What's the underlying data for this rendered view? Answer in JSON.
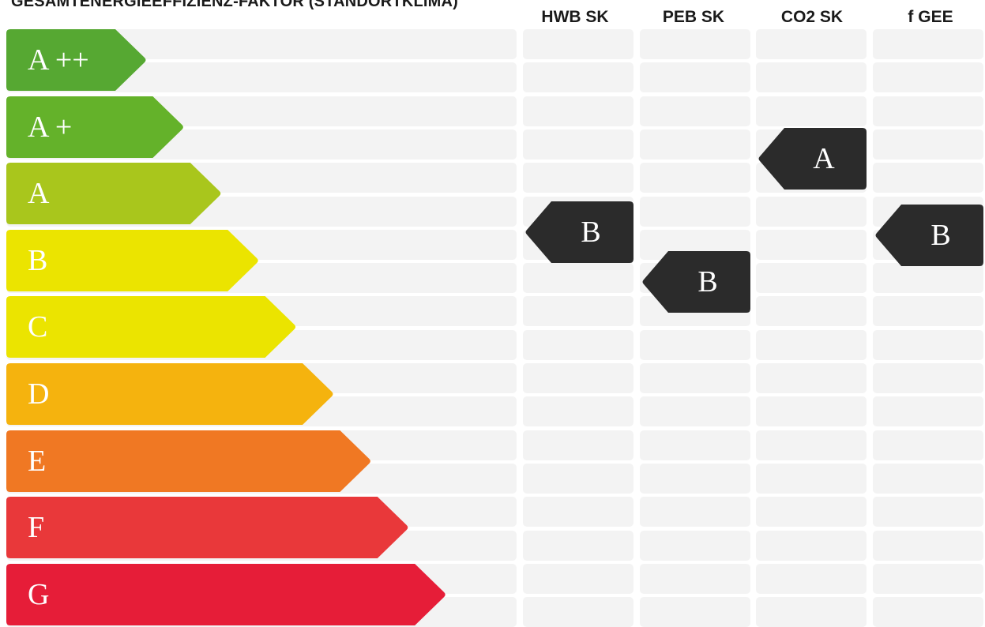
{
  "title": "GESAMTENERGIEEFFIZIENZ-FAKTOR (STANDORTKLIMA)",
  "columns": [
    "HWB SK",
    "PEB SK",
    "CO2 SK",
    "f GEE"
  ],
  "classes": [
    {
      "label": "A ++",
      "color": "#56a832"
    },
    {
      "label": "A +",
      "color": "#64b22a"
    },
    {
      "label": "A",
      "color": "#a9c61c"
    },
    {
      "label": "B",
      "color": "#ebe400"
    },
    {
      "label": "C",
      "color": "#ebe400"
    },
    {
      "label": "D",
      "color": "#f5b30e"
    },
    {
      "label": "E",
      "color": "#f07823"
    },
    {
      "label": "F",
      "color": "#e9383a"
    },
    {
      "label": "G",
      "color": "#e61d38"
    }
  ],
  "ratings": [
    {
      "column": "HWB SK",
      "value": "B",
      "class_position": 3.05
    },
    {
      "column": "PEB SK",
      "value": "B",
      "class_position": 3.8
    },
    {
      "column": "CO2 SK",
      "value": "A",
      "class_position": 1.95
    },
    {
      "column": "f GEE",
      "value": "B",
      "class_position": 3.1
    }
  ],
  "indicator_color": "#2b2b2b"
}
